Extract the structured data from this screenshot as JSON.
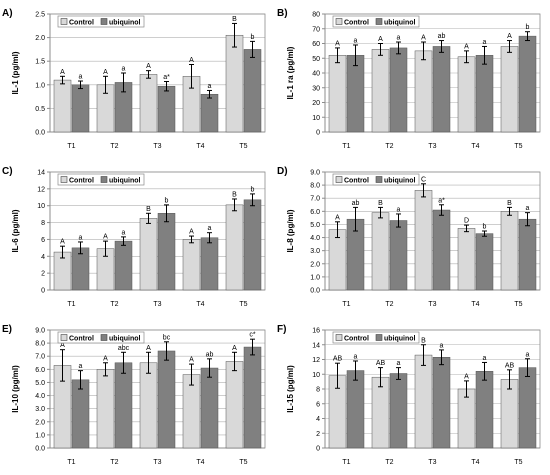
{
  "colors": {
    "control": "#d9d9d9",
    "ubiquinol": "#808080"
  },
  "chart_data": [
    {
      "type": "bar",
      "panel_label": "A)",
      "title": "",
      "xlabel": "",
      "ylabel": "IL-1 (pg/ml)",
      "ylim": [
        0,
        2.5
      ],
      "yticks": [
        0,
        0.5,
        1,
        1.5,
        2,
        2.5
      ],
      "ytick_labels": [
        "0.0",
        "0.5",
        "1.0",
        "1.5",
        "2.0",
        "2.5"
      ],
      "grid": true,
      "legend": "top-left",
      "categories": [
        "T1",
        "T2",
        "T3",
        "T4",
        "T5"
      ],
      "series": [
        {
          "name": "Control",
          "values": [
            1.1,
            1.0,
            1.22,
            1.18,
            2.05
          ],
          "errors": [
            0.08,
            0.18,
            0.08,
            0.25,
            0.25
          ],
          "labels": [
            "A",
            "A",
            "A",
            "A",
            "B"
          ]
        },
        {
          "name": "ubiquinol",
          "values": [
            1.0,
            1.05,
            0.97,
            0.8,
            1.75
          ],
          "errors": [
            0.08,
            0.2,
            0.1,
            0.08,
            0.17
          ],
          "labels": [
            "a",
            "a",
            "a*",
            "a",
            "b"
          ]
        }
      ]
    },
    {
      "type": "bar",
      "panel_label": "B)",
      "title": "",
      "xlabel": "",
      "ylabel": "IL-1 ra (pg/ml)",
      "ylim": [
        0,
        80
      ],
      "yticks": [
        0,
        10,
        20,
        30,
        40,
        50,
        60,
        70,
        80
      ],
      "ytick_labels": [
        "0",
        "10",
        "20",
        "30",
        "40",
        "50",
        "60",
        "70",
        "80"
      ],
      "grid": true,
      "legend": "top-left",
      "categories": [
        "T1",
        "T2",
        "T3",
        "T4",
        "T5"
      ],
      "series": [
        {
          "name": "Control",
          "values": [
            52,
            56,
            55,
            51,
            58
          ],
          "errors": [
            5,
            4,
            6,
            4,
            4
          ],
          "labels": [
            "A",
            "A",
            "A",
            "A",
            "A"
          ]
        },
        {
          "name": "ubiquinol",
          "values": [
            52,
            57,
            58,
            52,
            65
          ],
          "errors": [
            7,
            4,
            4,
            6,
            3
          ],
          "labels": [
            "a",
            "a",
            "ab",
            "a",
            "b"
          ]
        }
      ]
    },
    {
      "type": "bar",
      "panel_label": "C)",
      "title": "",
      "xlabel": "",
      "ylabel": "IL-6 (pg/ml)",
      "ylim": [
        0,
        14
      ],
      "yticks": [
        0,
        2,
        4,
        6,
        8,
        10,
        12,
        14
      ],
      "ytick_labels": [
        "0",
        "2",
        "4",
        "6",
        "8",
        "10",
        "12",
        "14"
      ],
      "grid": true,
      "legend": "top-left",
      "categories": [
        "T1",
        "T2",
        "T3",
        "T4",
        "T5"
      ],
      "series": [
        {
          "name": "Control",
          "values": [
            4.5,
            4.9,
            8.5,
            6.0,
            10.1
          ],
          "errors": [
            0.7,
            0.9,
            0.6,
            0.4,
            0.7
          ],
          "labels": [
            "A",
            "A",
            "B",
            "A",
            "B"
          ]
        },
        {
          "name": "ubiquinol",
          "values": [
            5.0,
            5.8,
            9.1,
            6.2,
            10.7
          ],
          "errors": [
            0.7,
            0.5,
            1.0,
            0.6,
            0.7
          ],
          "labels": [
            "a",
            "a",
            "b",
            "a",
            "b"
          ]
        }
      ]
    },
    {
      "type": "bar",
      "panel_label": "D)",
      "title": "",
      "xlabel": "",
      "ylabel": "IL-8 (pg/ml)",
      "ylim": [
        0,
        9
      ],
      "yticks": [
        0,
        1,
        2,
        3,
        4,
        5,
        6,
        7,
        8,
        9
      ],
      "ytick_labels": [
        "0.0",
        "1.0",
        "2.0",
        "3.0",
        "4.0",
        "5.0",
        "6.0",
        "7.0",
        "8.0",
        "9.0"
      ],
      "grid": true,
      "legend": "top-left",
      "categories": [
        "T1",
        "T2",
        "T3",
        "T4",
        "T5"
      ],
      "series": [
        {
          "name": "Control",
          "values": [
            4.6,
            5.9,
            7.6,
            4.7,
            6.0
          ],
          "errors": [
            0.6,
            0.4,
            0.5,
            0.25,
            0.3
          ],
          "labels": [
            "A",
            "B",
            "C",
            "D",
            "B"
          ]
        },
        {
          "name": "ubiquinol",
          "values": [
            5.4,
            5.3,
            6.1,
            4.3,
            5.4
          ],
          "errors": [
            0.9,
            0.5,
            0.4,
            0.2,
            0.5
          ],
          "labels": [
            "ab",
            "a",
            "a*",
            "b",
            "a"
          ]
        }
      ]
    },
    {
      "type": "bar",
      "panel_label": "E)",
      "title": "",
      "xlabel": "",
      "ylabel": "IL-10 (pg/ml)",
      "ylim": [
        0,
        9
      ],
      "yticks": [
        0,
        1,
        2,
        3,
        4,
        5,
        6,
        7,
        8,
        9
      ],
      "ytick_labels": [
        "0.0",
        "1.0",
        "2.0",
        "3.0",
        "4.0",
        "5.0",
        "6.0",
        "7.0",
        "8.0",
        "9.0"
      ],
      "grid": true,
      "legend": "top-left",
      "categories": [
        "T1",
        "T2",
        "T3",
        "T4",
        "T5"
      ],
      "series": [
        {
          "name": "Control",
          "values": [
            6.3,
            6.0,
            6.5,
            5.6,
            6.6
          ],
          "errors": [
            1.2,
            0.5,
            0.8,
            0.8,
            0.7
          ],
          "labels": [
            "A",
            "A",
            "A",
            "A",
            "A"
          ]
        },
        {
          "name": "ubiquinol",
          "values": [
            5.2,
            6.5,
            7.4,
            6.1,
            7.7
          ],
          "errors": [
            0.7,
            0.8,
            0.7,
            0.7,
            0.6
          ],
          "labels": [
            "a",
            "abc",
            "bc",
            "ab",
            "c*"
          ]
        }
      ]
    },
    {
      "type": "bar",
      "panel_label": "F)",
      "title": "",
      "xlabel": "",
      "ylabel": "IL-15 (pg/ml)",
      "ylim": [
        0,
        16
      ],
      "yticks": [
        0,
        2,
        4,
        6,
        8,
        10,
        12,
        14,
        16
      ],
      "ytick_labels": [
        "0",
        "2",
        "4",
        "6",
        "8",
        "10",
        "12",
        "14",
        "16"
      ],
      "grid": true,
      "legend": "top-left",
      "categories": [
        "T1",
        "T2",
        "T3",
        "T4",
        "T5"
      ],
      "series": [
        {
          "name": "Control",
          "values": [
            9.8,
            9.6,
            12.6,
            8.0,
            9.3
          ],
          "errors": [
            1.7,
            1.3,
            1.4,
            1.1,
            1.3
          ],
          "labels": [
            "AB",
            "AB",
            "B",
            "A",
            "AB"
          ]
        },
        {
          "name": "ubiquinol",
          "values": [
            10.5,
            10.1,
            12.3,
            10.4,
            10.9
          ],
          "errors": [
            1.3,
            0.8,
            1.0,
            1.2,
            1.2
          ],
          "labels": [
            "a",
            "a",
            "a",
            "a",
            "a"
          ]
        }
      ]
    }
  ]
}
